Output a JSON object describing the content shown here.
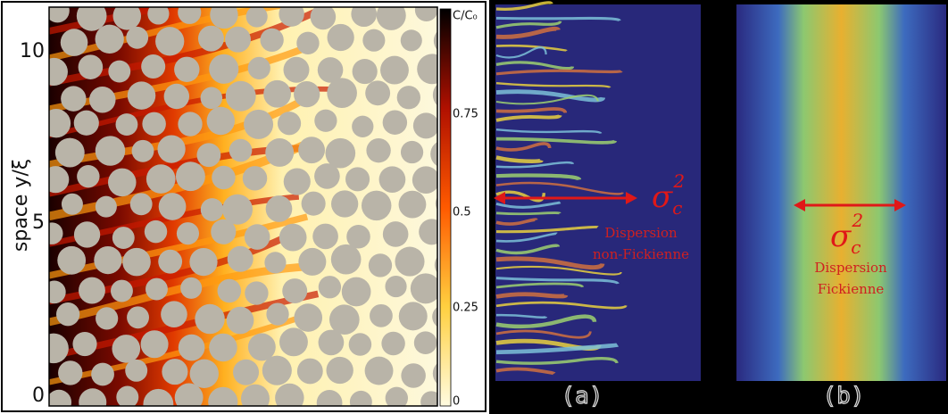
{
  "left_panel": {
    "y_label": "space y/ξ",
    "y_ticks": [
      "10",
      "5",
      "0"
    ],
    "colorbar": {
      "label": "C/C₀",
      "ticks": [
        "0.75",
        "0.5",
        "0.25",
        "0"
      ]
    }
  },
  "panel_a": {
    "sigma": {
      "symbol": "σ",
      "subscript": "c",
      "superscript": "2"
    },
    "caption_lines": [
      "Dispersion",
      "non-Fickienne"
    ],
    "label": "(a)"
  },
  "panel_b": {
    "sigma": {
      "symbol": "σ",
      "subscript": "c",
      "superscript": "2"
    },
    "caption_lines": [
      "Dispersion",
      "Fickienne"
    ],
    "label": "(b)"
  }
}
